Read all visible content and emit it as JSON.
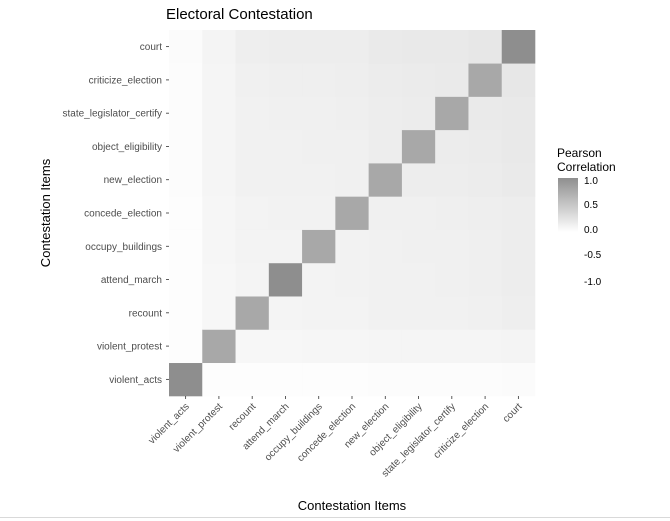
{
  "chart_data": {
    "type": "heatmap",
    "title": "Electoral Contestation",
    "xlabel": "Contestation Items",
    "ylabel": "Contestation Items",
    "items": [
      "violent_acts",
      "violent_protest",
      "recount",
      "attend_march",
      "occupy_buildings",
      "concede_election",
      "new_election",
      "object_eligibility",
      "state_legislator_certify",
      "criticize_election",
      "court"
    ],
    "matrix": [
      [
        1.0,
        0.02,
        0.03,
        0.03,
        0.03,
        0.03,
        0.04,
        0.04,
        0.04,
        0.04,
        0.05
      ],
      [
        0.02,
        1.0,
        0.1,
        0.1,
        0.11,
        0.11,
        0.12,
        0.12,
        0.12,
        0.13,
        0.14
      ],
      [
        0.03,
        0.1,
        1.0,
        0.14,
        0.15,
        0.15,
        0.17,
        0.17,
        0.18,
        0.19,
        0.21
      ],
      [
        0.03,
        0.1,
        0.14,
        1.0,
        0.15,
        0.16,
        0.18,
        0.18,
        0.19,
        0.2,
        0.22
      ],
      [
        0.03,
        0.11,
        0.15,
        0.15,
        1.0,
        0.16,
        0.18,
        0.19,
        0.19,
        0.2,
        0.22
      ],
      [
        0.03,
        0.11,
        0.15,
        0.16,
        0.16,
        1.0,
        0.19,
        0.19,
        0.2,
        0.21,
        0.23
      ],
      [
        0.04,
        0.12,
        0.17,
        0.18,
        0.18,
        0.19,
        1.0,
        0.22,
        0.23,
        0.24,
        0.26
      ],
      [
        0.04,
        0.12,
        0.17,
        0.18,
        0.19,
        0.19,
        0.22,
        1.0,
        0.24,
        0.25,
        0.27
      ],
      [
        0.04,
        0.12,
        0.18,
        0.19,
        0.19,
        0.2,
        0.23,
        0.24,
        1.0,
        0.26,
        0.28
      ],
      [
        0.04,
        0.13,
        0.19,
        0.2,
        0.2,
        0.21,
        0.24,
        0.25,
        0.26,
        1.0,
        0.3
      ],
      [
        0.05,
        0.14,
        0.21,
        0.22,
        0.22,
        0.23,
        0.26,
        0.27,
        0.28,
        0.3,
        1.0
      ]
    ],
    "diagonal_shading": [
      0.78,
      0.6,
      0.6,
      0.78,
      0.6,
      0.6,
      0.6,
      0.6,
      0.6,
      0.6,
      0.78
    ],
    "legend": {
      "title_line1": "Pearson",
      "title_line2": "Correlation",
      "ticks": [
        "1.0",
        "0.5",
        "0.0",
        "-0.5",
        "-1.0"
      ],
      "placement": "right"
    },
    "colors": {
      "panel_background": "#ebebeb",
      "gridline": "#ffffff",
      "low": "#ffffff",
      "high": "#6e6e6e",
      "axis_text": "#4d4d4d",
      "title_text": "#000000"
    },
    "grid": true
  }
}
